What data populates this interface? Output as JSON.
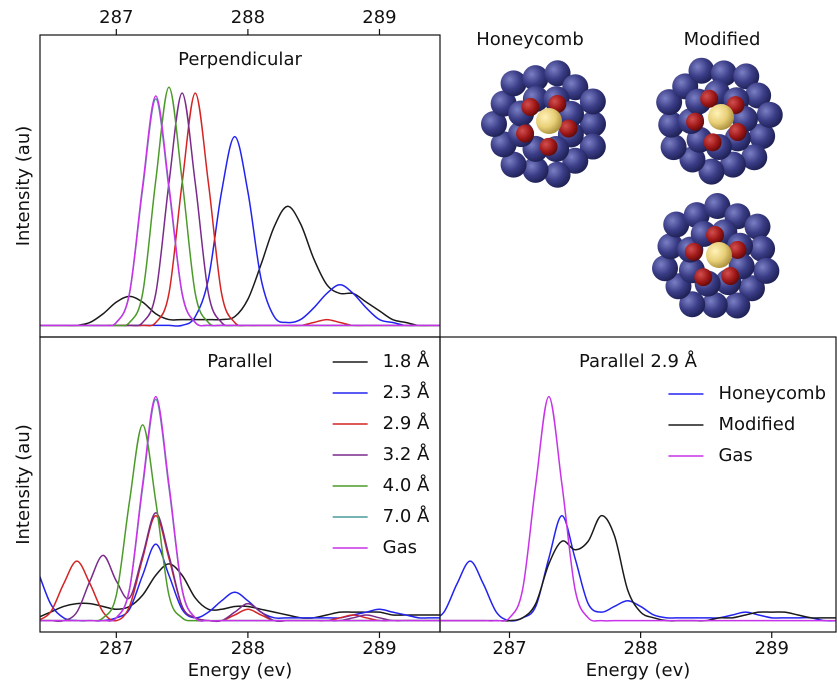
{
  "chart_data": [
    {
      "type": "line",
      "title": "Perpendicular",
      "ylabel": "Intensity (au)",
      "xaxis": "top",
      "xlim": [
        286.42,
        289.46
      ],
      "ylim": [
        -0.04,
        1.0
      ],
      "xticks": [
        287,
        288,
        289
      ],
      "x": [
        286.4,
        286.5,
        286.6,
        286.7,
        286.8,
        286.9,
        287.0,
        287.1,
        287.2,
        287.3,
        287.4,
        287.5,
        287.6,
        287.7,
        287.8,
        287.9,
        288.0,
        288.1,
        288.2,
        288.3,
        288.4,
        288.5,
        288.6,
        288.7,
        288.8,
        288.9,
        289.0,
        289.1,
        289.2,
        289.3,
        289.4,
        289.5
      ],
      "series": [
        {
          "color": "#1a1a1a",
          "values": [
            0,
            0,
            0,
            0,
            0.01,
            0.04,
            0.08,
            0.1,
            0.08,
            0.04,
            0.02,
            0.02,
            0.02,
            0.02,
            0.02,
            0.03,
            0.09,
            0.21,
            0.34,
            0.41,
            0.35,
            0.23,
            0.14,
            0.11,
            0.11,
            0.08,
            0.05,
            0.02,
            0.01,
            0,
            0,
            0
          ]
        },
        {
          "color": "#2323f0",
          "values": [
            0,
            0,
            0,
            0,
            0,
            0,
            0,
            0,
            0,
            0,
            0,
            0,
            0.03,
            0.16,
            0.46,
            0.65,
            0.46,
            0.16,
            0.03,
            0.01,
            0.02,
            0.06,
            0.11,
            0.14,
            0.11,
            0.06,
            0.02,
            0.01,
            0,
            0,
            0,
            0
          ]
        },
        {
          "color": "#d42424",
          "values": [
            0,
            0,
            0,
            0,
            0,
            0,
            0,
            0,
            0,
            0.01,
            0.11,
            0.49,
            0.8,
            0.49,
            0.11,
            0.01,
            0,
            0,
            0,
            0,
            0,
            0.01,
            0.02,
            0.01,
            0,
            0,
            0,
            0,
            0,
            0,
            0,
            0
          ]
        },
        {
          "color": "#7a2a8a",
          "values": [
            0,
            0,
            0,
            0,
            0,
            0,
            0,
            0,
            0.01,
            0.11,
            0.49,
            0.8,
            0.49,
            0.11,
            0.01,
            0,
            0,
            0,
            0,
            0,
            0,
            0,
            0,
            0,
            0,
            0,
            0,
            0,
            0,
            0,
            0,
            0
          ]
        },
        {
          "color": "#4c9a2a",
          "values": [
            0,
            0,
            0,
            0,
            0,
            0,
            0,
            0.01,
            0.11,
            0.5,
            0.82,
            0.5,
            0.11,
            0.01,
            0,
            0,
            0,
            0,
            0,
            0,
            0,
            0,
            0,
            0,
            0,
            0,
            0,
            0,
            0,
            0,
            0,
            0
          ]
        },
        {
          "color": "#4a9a9a",
          "values": [
            0,
            0,
            0,
            0,
            0,
            0,
            0.01,
            0.11,
            0.47,
            0.78,
            0.47,
            0.11,
            0.01,
            0,
            0,
            0,
            0,
            0,
            0,
            0,
            0,
            0,
            0,
            0,
            0,
            0,
            0,
            0,
            0,
            0,
            0,
            0
          ]
        },
        {
          "color": "#c832e8",
          "values": [
            0,
            0,
            0,
            0,
            0,
            0,
            0.01,
            0.11,
            0.48,
            0.79,
            0.48,
            0.11,
            0.01,
            0,
            0,
            0,
            0,
            0,
            0,
            0,
            0,
            0,
            0,
            0,
            0,
            0,
            0,
            0,
            0,
            0,
            0,
            0
          ]
        }
      ]
    },
    {
      "type": "line",
      "title": "Parallel",
      "ylabel": "Intensity (au)",
      "xlabel": "Energy (ev)",
      "xaxis": "bottom",
      "legend": "upper right",
      "xlim": [
        286.42,
        289.46
      ],
      "ylim": [
        -0.04,
        1.0
      ],
      "xticks": [
        287,
        288,
        289
      ],
      "x": [
        286.4,
        286.5,
        286.6,
        286.7,
        286.8,
        286.9,
        287.0,
        287.1,
        287.2,
        287.3,
        287.4,
        287.5,
        287.6,
        287.7,
        287.8,
        287.9,
        288.0,
        288.1,
        288.2,
        288.3,
        288.4,
        288.5,
        288.6,
        288.7,
        288.8,
        288.9,
        289.0,
        289.1,
        289.2,
        289.3,
        289.4,
        289.5
      ],
      "series": [
        {
          "name": "1.8 Å",
          "color": "#1a1a1a",
          "values": [
            0.01,
            0.03,
            0.05,
            0.06,
            0.06,
            0.05,
            0.04,
            0.05,
            0.09,
            0.16,
            0.2,
            0.16,
            0.08,
            0.04,
            0.04,
            0.05,
            0.05,
            0.04,
            0.03,
            0.02,
            0.01,
            0.01,
            0.02,
            0.03,
            0.03,
            0.03,
            0.03,
            0.02,
            0.02,
            0.02,
            0.02,
            0.02
          ]
        },
        {
          "name": "2.3 Å",
          "color": "#2323f0",
          "values": [
            0.18,
            0.06,
            0.01,
            0,
            0,
            0,
            0.01,
            0.04,
            0.16,
            0.27,
            0.16,
            0.04,
            0.01,
            0.03,
            0.07,
            0.1,
            0.07,
            0.03,
            0.01,
            0.01,
            0.01,
            0.01,
            0.01,
            0.01,
            0.02,
            0.03,
            0.04,
            0.03,
            0.02,
            0.01,
            0.01,
            0.01
          ]
        },
        {
          "name": "2.9 Å",
          "color": "#d42424",
          "values": [
            0,
            0.03,
            0.13,
            0.21,
            0.13,
            0.03,
            0,
            0.05,
            0.22,
            0.37,
            0.22,
            0.05,
            0.01,
            0,
            0,
            0.02,
            0.04,
            0.02,
            0,
            0,
            0,
            0,
            0,
            0.01,
            0.02,
            0.01,
            0,
            0,
            0,
            0,
            0,
            0
          ]
        },
        {
          "name": "3.2 Å",
          "color": "#7a2a8a",
          "values": [
            0,
            0,
            0,
            0.03,
            0.14,
            0.23,
            0.14,
            0.08,
            0.23,
            0.38,
            0.23,
            0.05,
            0.01,
            0,
            0,
            0.03,
            0.06,
            0.03,
            0,
            0,
            0,
            0,
            0,
            0,
            0.01,
            0.02,
            0.01,
            0,
            0,
            0,
            0,
            0
          ]
        },
        {
          "name": "4.0 Å",
          "color": "#4c9a2a",
          "values": [
            0,
            0,
            0,
            0,
            0,
            0.01,
            0.09,
            0.42,
            0.69,
            0.42,
            0.09,
            0.01,
            0,
            0,
            0,
            0,
            0,
            0,
            0,
            0,
            0,
            0,
            0,
            0,
            0,
            0,
            0,
            0,
            0,
            0,
            0,
            0
          ]
        },
        {
          "name": "7.0 Å",
          "color": "#4a9a9a",
          "values": [
            0,
            0,
            0,
            0,
            0,
            0,
            0.01,
            0.11,
            0.47,
            0.78,
            0.47,
            0.11,
            0.01,
            0,
            0,
            0,
            0,
            0,
            0,
            0,
            0,
            0,
            0,
            0,
            0,
            0,
            0,
            0,
            0,
            0,
            0,
            0
          ]
        },
        {
          "name": "Gas",
          "color": "#c832e8",
          "values": [
            0,
            0,
            0,
            0,
            0,
            0,
            0.01,
            0.11,
            0.48,
            0.79,
            0.48,
            0.11,
            0.01,
            0,
            0,
            0,
            0,
            0,
            0,
            0,
            0,
            0,
            0,
            0,
            0,
            0,
            0,
            0,
            0,
            0,
            0,
            0
          ]
        }
      ]
    },
    {
      "type": "line",
      "title": "Parallel 2.9 Å",
      "xlabel": "Energy (ev)",
      "xaxis": "bottom",
      "legend": "upper right",
      "xlim": [
        286.47,
        289.49
      ],
      "ylim": [
        -0.04,
        1.0
      ],
      "xticks": [
        287,
        288,
        289
      ],
      "x": [
        286.4,
        286.5,
        286.6,
        286.7,
        286.8,
        286.9,
        287.0,
        287.1,
        287.2,
        287.3,
        287.4,
        287.5,
        287.6,
        287.7,
        287.8,
        287.9,
        288.0,
        288.1,
        288.2,
        288.3,
        288.4,
        288.5,
        288.6,
        288.7,
        288.8,
        288.9,
        289.0,
        289.1,
        289.2,
        289.3,
        289.4,
        289.5
      ],
      "series": [
        {
          "name": "Honeycomb",
          "color": "#2323f0",
          "values": [
            0,
            0.03,
            0.13,
            0.21,
            0.13,
            0.03,
            0,
            0.01,
            0.05,
            0.22,
            0.37,
            0.22,
            0.06,
            0.03,
            0.05,
            0.07,
            0.05,
            0.02,
            0.01,
            0.01,
            0.01,
            0.01,
            0.01,
            0.02,
            0.03,
            0.02,
            0.01,
            0.01,
            0.01,
            0.01,
            0,
            0
          ]
        },
        {
          "name": "Modified",
          "color": "#1a1a1a",
          "values": [
            0,
            0,
            0,
            0,
            0,
            0,
            0,
            0.01,
            0.06,
            0.2,
            0.28,
            0.25,
            0.28,
            0.37,
            0.3,
            0.11,
            0.03,
            0.01,
            0,
            0,
            0,
            0,
            0.01,
            0.01,
            0.02,
            0.03,
            0.03,
            0.03,
            0.02,
            0.01,
            0.01,
            0.01
          ]
        },
        {
          "name": "Gas",
          "color": "#c832e8",
          "values": [
            0,
            0,
            0,
            0,
            0,
            0,
            0.01,
            0.11,
            0.48,
            0.79,
            0.48,
            0.11,
            0.01,
            0,
            0,
            0,
            0,
            0,
            0,
            0,
            0,
            0,
            0,
            0,
            0,
            0,
            0,
            0,
            0,
            0,
            0,
            0
          ]
        }
      ]
    }
  ],
  "illustration": {
    "labels": [
      "Honeycomb",
      "Modified"
    ]
  }
}
